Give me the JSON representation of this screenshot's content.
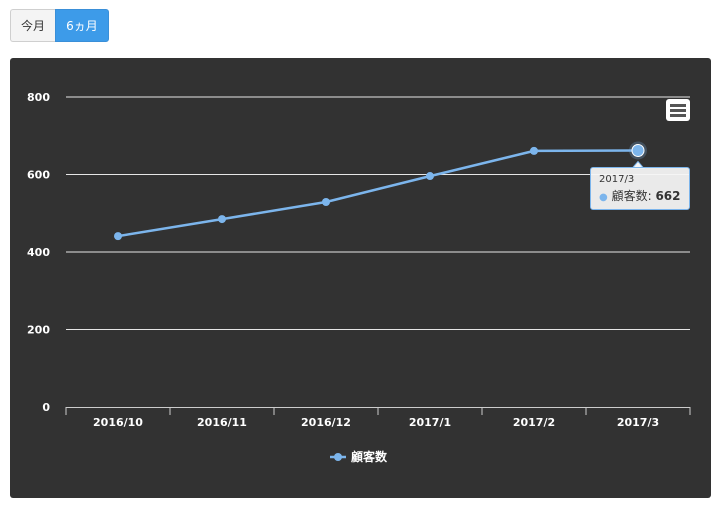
{
  "buttons": {
    "this_month": "今月",
    "six_months": "6ヵ月"
  },
  "colors": {
    "series": "#7cb5ec",
    "panel": "#323232",
    "active_button": "#3d9be9"
  },
  "chart_data": {
    "type": "line",
    "categories": [
      "2016/10",
      "2016/11",
      "2016/12",
      "2017/1",
      "2017/2",
      "2017/3"
    ],
    "series": [
      {
        "name": "顧客数",
        "values": [
          441,
          485,
          529,
          596,
          661,
          662
        ]
      }
    ],
    "yticks": [
      0,
      200,
      400,
      600,
      800
    ],
    "ylim": [
      0,
      800
    ],
    "grid": true,
    "legend": "bottom-center",
    "tooltip": {
      "x": "2017/3",
      "series": "顧客数",
      "sep": ":",
      "value": "662"
    }
  },
  "icons": {
    "menu": "hamburger-menu-icon"
  }
}
